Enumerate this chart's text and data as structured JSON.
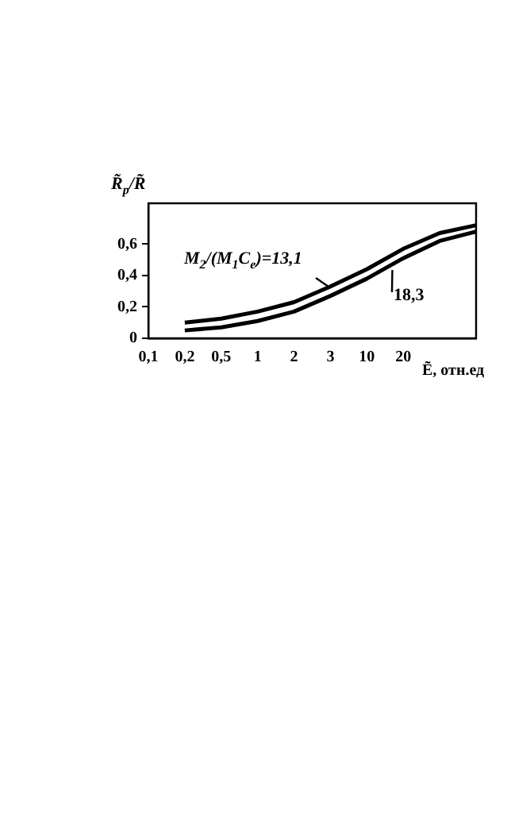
{
  "chart_data": {
    "type": "line",
    "xlabel": "Ẽ, отн.ед",
    "ylabel": "R̃$_{p}$/R̃",
    "categories": [
      "0,1",
      "0,2",
      "0,5",
      "1",
      "2",
      "3",
      "10",
      "20",
      null,
      null
    ],
    "series": [
      {
        "color": "#000000",
        "values": [
          null,
          0.1,
          0.125,
          0.17,
          0.23,
          0.33,
          0.44,
          0.57,
          0.67,
          0.72
        ]
      },
      {
        "color": "#000000",
        "values": [
          null,
          0.05,
          0.07,
          0.11,
          0.17,
          0.27,
          0.38,
          0.51,
          0.62,
          0.68
        ]
      }
    ],
    "annotations": [
      "M$_{2}$/(M$_{1}$C$_{e}$)=13,1",
      "18,3"
    ],
    "ylim": [
      0,
      0.86
    ],
    "yticks": [
      0,
      {
        "value": 0.2,
        "label": "0,2"
      },
      {
        "value": 0.4,
        "label": "0,4"
      },
      {
        "value": 0.6,
        "label": "0,6"
      }
    ],
    "grid": false,
    "legend": false,
    "marker": "none",
    "line_style": "solid"
  }
}
